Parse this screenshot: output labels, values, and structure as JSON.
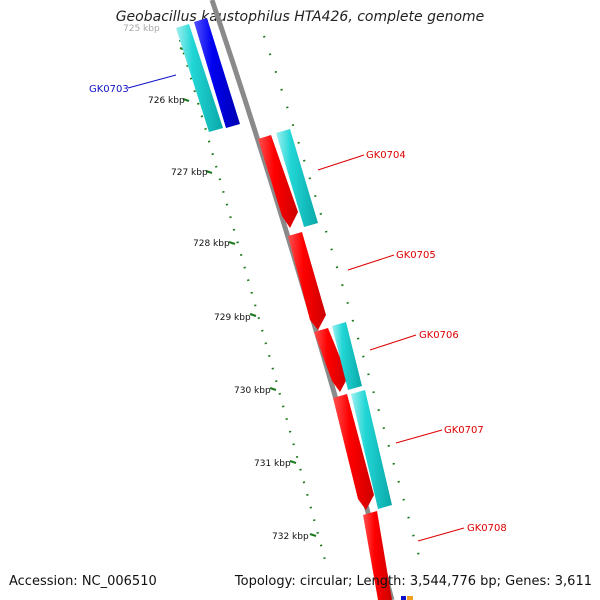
{
  "header": {
    "title": "Geobacillus kaustophilus HTA426, complete genome"
  },
  "footer": {
    "accession": "Accession: NC_006510",
    "summary": "Topology: circular; Length: 3,544,776 bp; Genes: 3,611"
  },
  "scale": {
    "ticks": [
      {
        "label": "725 kbp",
        "faded": true
      },
      {
        "label": "726 kbp"
      },
      {
        "label": "727 kbp"
      },
      {
        "label": "728 kbp"
      },
      {
        "label": "729 kbp"
      },
      {
        "label": "730 kbp"
      },
      {
        "label": "731 kbp"
      },
      {
        "label": "732 kbp"
      }
    ]
  },
  "genes": [
    {
      "name": "GK0703",
      "strand": "reverse",
      "color": "#1010c8"
    },
    {
      "name": "GK0704",
      "strand": "forward",
      "color": "#dd0000"
    },
    {
      "name": "GK0705",
      "strand": "forward",
      "color": "#dd0000"
    },
    {
      "name": "GK0706",
      "strand": "forward",
      "color": "#dd0000"
    },
    {
      "name": "GK0707",
      "strand": "forward",
      "color": "#dd0000"
    },
    {
      "name": "GK0708",
      "strand": "forward",
      "color": "#dd0000"
    }
  ],
  "colors": {
    "backbone": "#888888",
    "tick_green": "#1e7a1e",
    "forward_gene": "#ff0000",
    "reverse_gene": "#0000ee",
    "cds_cyan": "#22d0d0"
  }
}
